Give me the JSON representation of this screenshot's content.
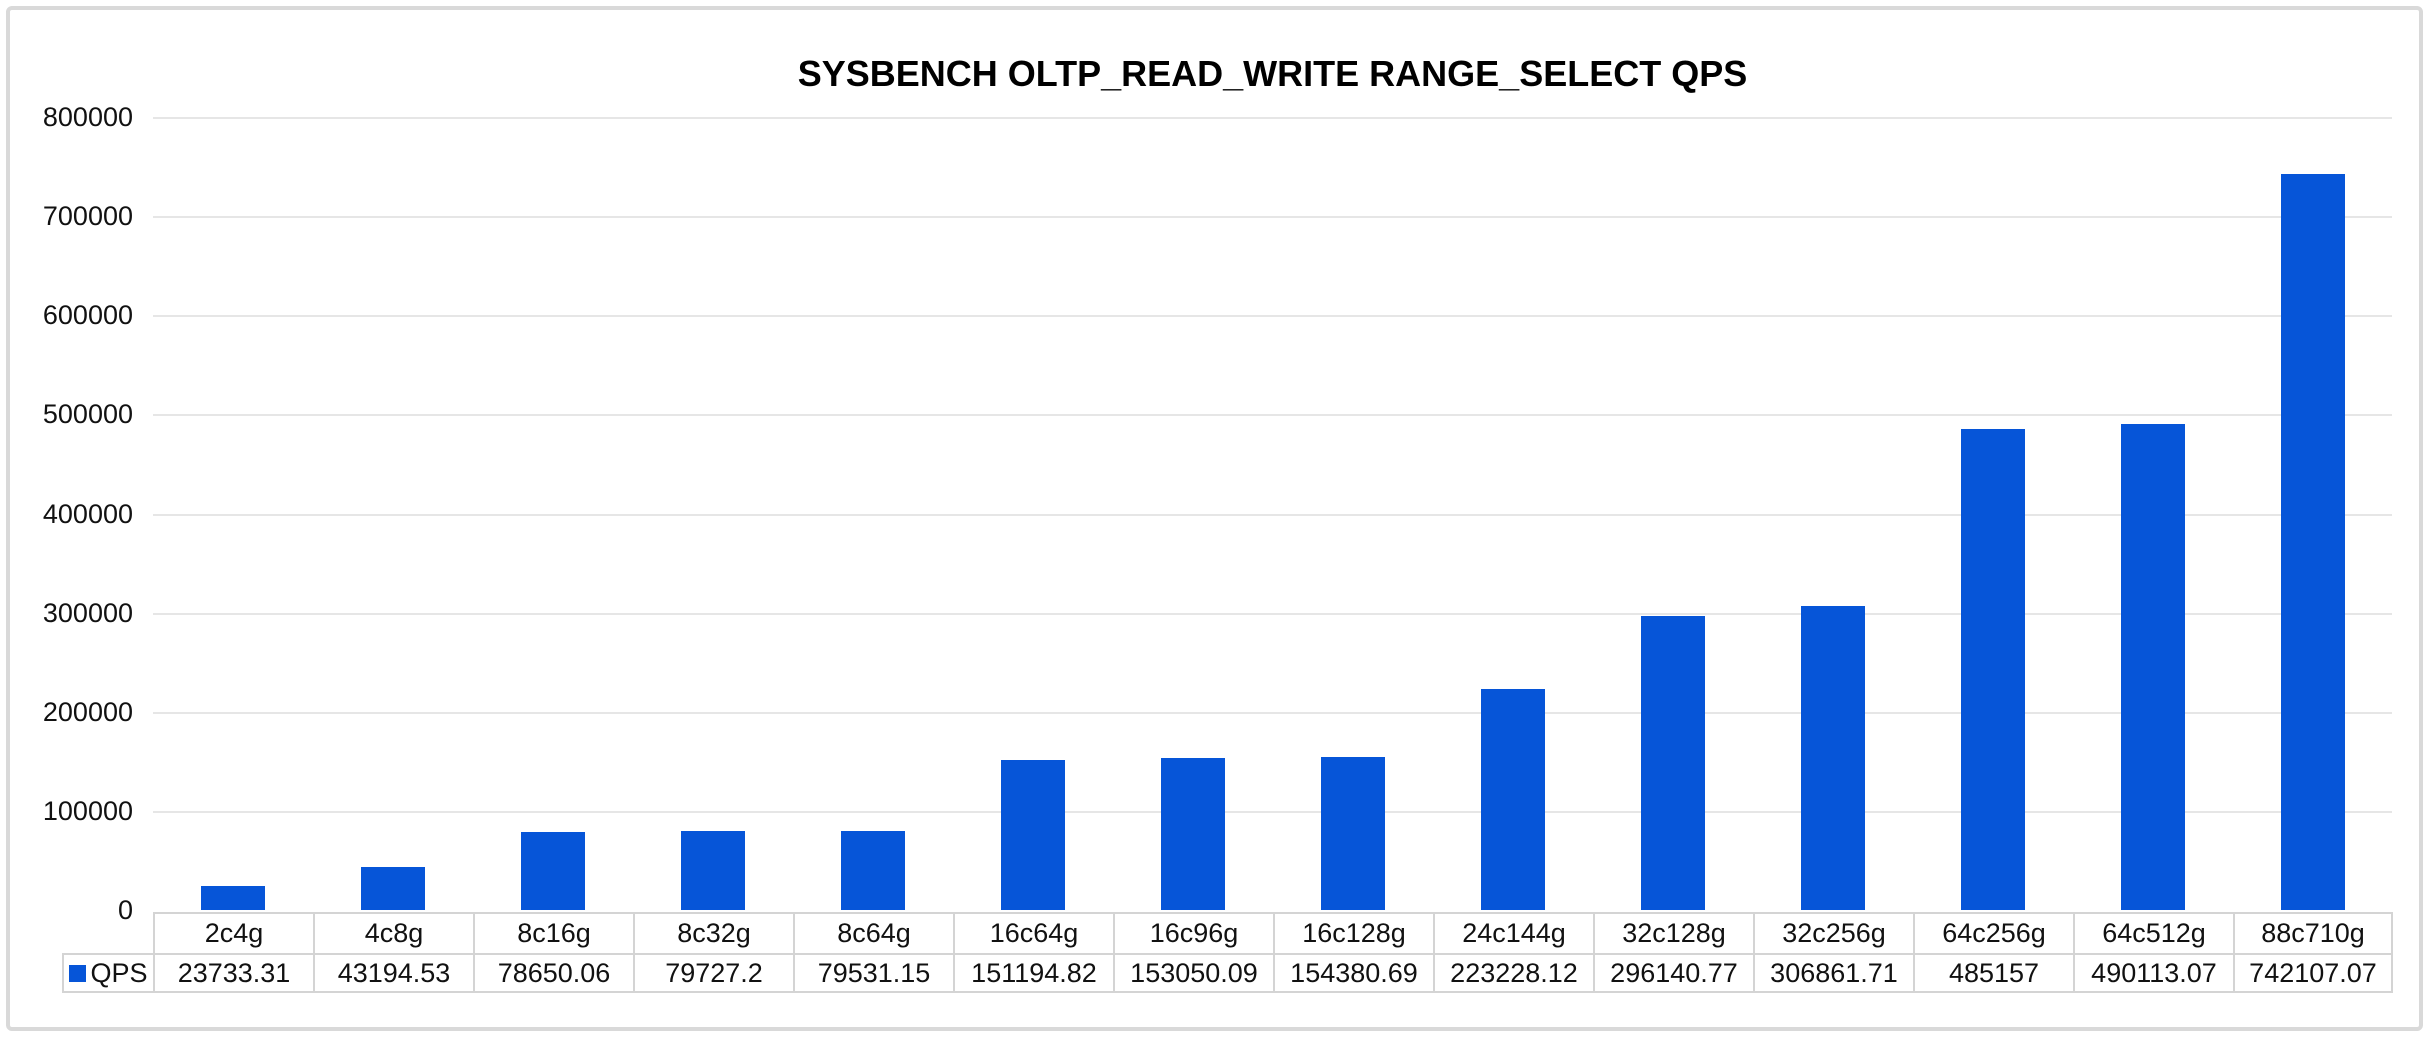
{
  "title": "SYSBENCH OLTP_READ_WRITE RANGE_SELECT QPS",
  "legend": {
    "series_label": "QPS"
  },
  "colors": {
    "bar": "#0655d8",
    "gridline": "#e6e6e6",
    "table_border": "#d4d4d4",
    "frame_border": "#d9d9d9",
    "text": "#111111"
  },
  "y_axis": {
    "min": 0,
    "max": 800000,
    "tick_interval": 100000,
    "tick_labels": [
      "0",
      "100000",
      "200000",
      "300000",
      "400000",
      "500000",
      "600000",
      "700000",
      "800000"
    ]
  },
  "chart_data": {
    "type": "bar",
    "title": "SYSBENCH OLTP_READ_WRITE RANGE_SELECT QPS",
    "categories": [
      "2c4g",
      "4c8g",
      "8c16g",
      "8c32g",
      "8c64g",
      "16c64g",
      "16c96g",
      "16c128g",
      "24c144g",
      "32c128g",
      "32c256g",
      "64c256g",
      "64c512g",
      "88c710g"
    ],
    "series": [
      {
        "name": "QPS",
        "values": [
          23733.31,
          43194.53,
          78650.06,
          79727.2,
          79531.15,
          151194.82,
          153050.09,
          154380.69,
          223228.12,
          296140.77,
          306861.71,
          485157,
          490113.07,
          742107.07
        ]
      }
    ],
    "value_labels": [
      "23733.31",
      "43194.53",
      "78650.06",
      "79727.2",
      "79531.15",
      "151194.82",
      "153050.09",
      "154380.69",
      "223228.12",
      "296140.77",
      "306861.71",
      "485157",
      "490113.07",
      "742107.07"
    ],
    "xlabel": "",
    "ylabel": "",
    "ylim": [
      0,
      800000
    ],
    "ytick_interval": 100000,
    "grid": "horizontal",
    "legend_position": "bottom-left-of-data-table",
    "data_table_shown": true
  }
}
